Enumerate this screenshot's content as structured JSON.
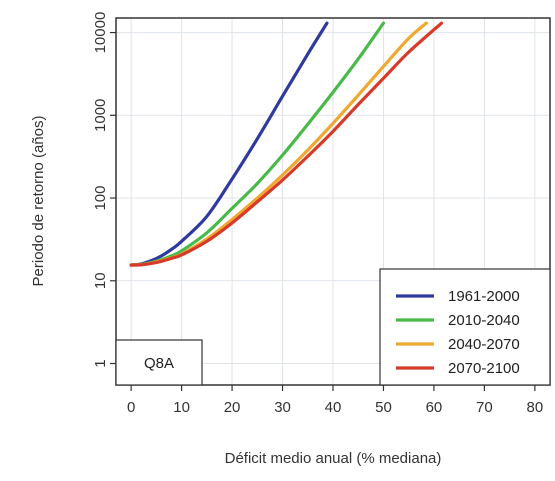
{
  "chart_data": {
    "type": "line",
    "title": "",
    "xlabel": "Déficit medio anual (% mediana)",
    "ylabel": "Periodo de retorno (años)",
    "xlim": [
      -3,
      83
    ],
    "ylim": [
      0.55,
      15000
    ],
    "y_scale": "log",
    "grid": true,
    "x_ticks": [
      0,
      10,
      20,
      30,
      40,
      50,
      60,
      70,
      80
    ],
    "x_tick_labels": [
      "0",
      "10",
      "20",
      "30",
      "40",
      "50",
      "60",
      "70",
      "80"
    ],
    "y_ticks": [
      1,
      10,
      100,
      1000,
      10000
    ],
    "y_tick_labels": [
      "1",
      "10",
      "100",
      "1000",
      "10000"
    ],
    "legend_position": "bottom-right",
    "panel_label": "Q8A",
    "series": [
      {
        "name": "1961-2000",
        "color": "#2e3a9e",
        "x": [
          0,
          2,
          4,
          6,
          8,
          10,
          15,
          20,
          25,
          30,
          35,
          38.8
        ],
        "y": [
          15.5,
          16,
          17.5,
          20,
          24,
          30,
          60,
          170,
          520,
          1700,
          5500,
          13000
        ]
      },
      {
        "name": "2010-2040",
        "color": "#49b949",
        "x": [
          0,
          2,
          4,
          6,
          8,
          10,
          15,
          20,
          25,
          30,
          35,
          40,
          45,
          50
        ],
        "y": [
          15.5,
          15.8,
          16.6,
          18,
          20,
          23,
          38,
          75,
          150,
          330,
          780,
          1900,
          4800,
          13000
        ]
      },
      {
        "name": "2040-2070",
        "color": "#f0a830",
        "x": [
          0,
          2,
          4,
          6,
          8,
          10,
          15,
          20,
          25,
          30,
          35,
          40,
          45,
          50,
          55,
          58.5
        ],
        "y": [
          15.5,
          15.6,
          16.3,
          17.5,
          19,
          21,
          32,
          55,
          100,
          190,
          380,
          800,
          1750,
          3900,
          8500,
          13000
        ]
      },
      {
        "name": "2070-2100",
        "color": "#d83a2a",
        "x": [
          0,
          2,
          4,
          6,
          8,
          10,
          15,
          20,
          25,
          30,
          35,
          40,
          45,
          50,
          55,
          61.5
        ],
        "y": [
          15.5,
          15.6,
          16.2,
          17.2,
          18.7,
          20.5,
          30,
          50,
          90,
          165,
          320,
          640,
          1350,
          2800,
          5800,
          13000
        ]
      }
    ]
  }
}
